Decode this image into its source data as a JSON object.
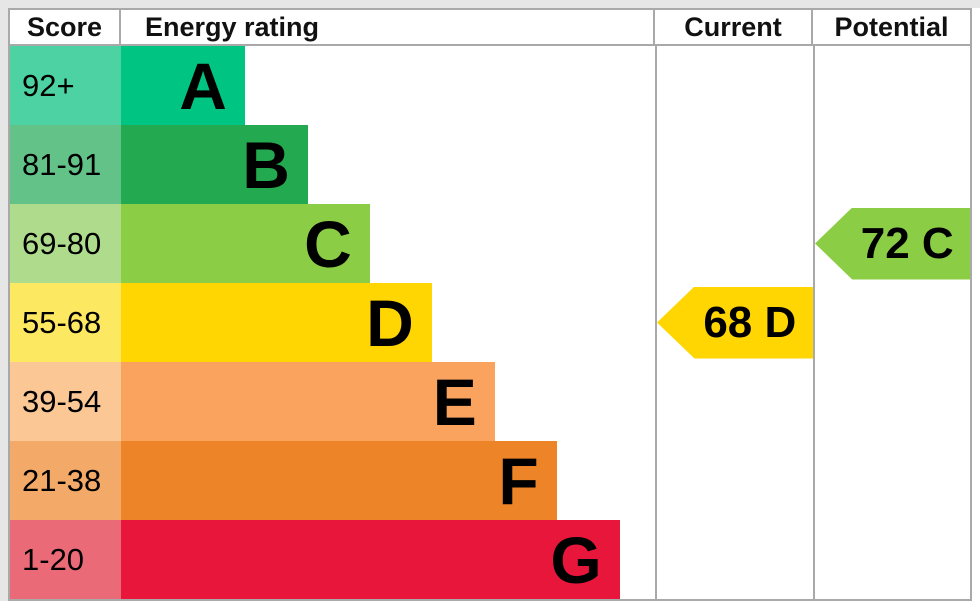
{
  "table": {
    "headers": {
      "score": "Score",
      "rating": "Energy rating",
      "current": "Current",
      "potential": "Potential"
    },
    "border_color": "#a9a9a9"
  },
  "chart_data": {
    "type": "bar",
    "title": "Energy rating",
    "description": "EPC energy efficiency rating chart with score bands A-G, current and potential ratings",
    "categories": [
      "A",
      "B",
      "C",
      "D",
      "E",
      "F",
      "G"
    ],
    "bands": [
      {
        "letter": "A",
        "score_range": "92+",
        "bar_width_pct": 23.2,
        "bar_color": "#00c482",
        "score_cell_color": "#4dd3a3"
      },
      {
        "letter": "B",
        "score_range": "81-91",
        "bar_width_pct": 35.0,
        "bar_color": "#23a94f",
        "score_cell_color": "#63c288"
      },
      {
        "letter": "C",
        "score_range": "69-80",
        "bar_width_pct": 46.6,
        "bar_color": "#8ccd46",
        "score_cell_color": "#aedc8c"
      },
      {
        "letter": "D",
        "score_range": "55-68",
        "bar_width_pct": 58.2,
        "bar_color": "#ffd502",
        "score_cell_color": "#fde961"
      },
      {
        "letter": "E",
        "score_range": "39-54",
        "bar_width_pct": 70.0,
        "bar_color": "#f9a35e",
        "score_cell_color": "#fbc795"
      },
      {
        "letter": "F",
        "score_range": "21-38",
        "bar_width_pct": 81.6,
        "bar_color": "#ee8428",
        "score_cell_color": "#f3a967"
      },
      {
        "letter": "G",
        "score_range": "1-20",
        "bar_width_pct": 93.4,
        "bar_color": "#e9163c",
        "score_cell_color": "#ea6a78"
      }
    ],
    "current": {
      "value": 68,
      "band": "D",
      "label": "68 D",
      "arrow_color": "#ffd502"
    },
    "potential": {
      "value": 72,
      "band": "C",
      "label": "72 C",
      "arrow_color": "#8ccd46"
    }
  }
}
